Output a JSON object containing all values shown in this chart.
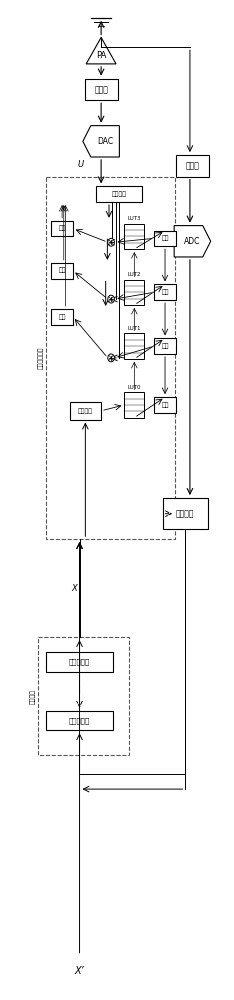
{
  "bg_color": "#ffffff",
  "line_color": "#000000",
  "text_color": "#000000",
  "pa_label": "PA",
  "upmix_label": "上变频",
  "downmix_label": "下变频",
  "dac_label": "DAC",
  "adc_label": "ADC",
  "u_label": "U",
  "outsel_label": "输出选择",
  "delay_label": "延时",
  "idx_label": "索引生成",
  "lut_labels": [
    "LUT0",
    "LUT1",
    "LUT2",
    "LUT3"
  ],
  "param_label": "参数训练",
  "hb_label": "半带滤波器",
  "interp_label": "插分模块",
  "predist_label": "预失真器模块",
  "x_label": "X",
  "xp_label": "X’"
}
